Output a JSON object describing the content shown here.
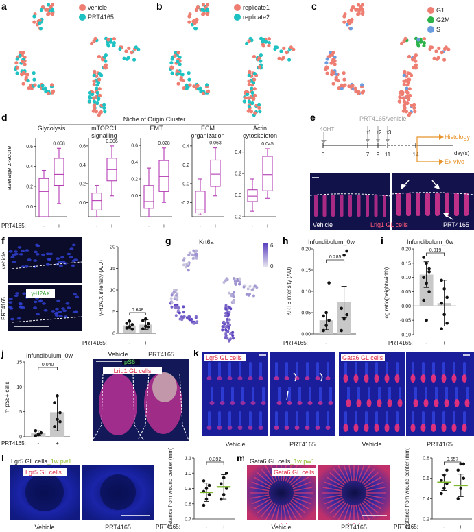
{
  "panels": {
    "a": {
      "letter": "a",
      "legend": [
        "vehicle",
        "PRT4165"
      ],
      "colors": [
        "#ee7e72",
        "#1fc2c2"
      ]
    },
    "b": {
      "letter": "b",
      "legend": [
        "replicate1",
        "replicate2"
      ],
      "colors": [
        "#ee7e72",
        "#1fc2c2"
      ]
    },
    "c": {
      "letter": "c",
      "legend": [
        "G1",
        "G2M",
        "S"
      ],
      "colors": [
        "#ee7e72",
        "#2bb34a",
        "#6a9de0"
      ]
    },
    "d": {
      "letter": "d",
      "title": "Niche of Origin Cluster",
      "ylabel": "average z-score",
      "treat_label": "PRT4165:",
      "subplots": [
        {
          "title": "Glycolysis",
          "title2": "",
          "pvalue": "0.058",
          "ticks": [
            "0.6",
            "0.4",
            "0.2",
            "0.0"
          ],
          "ymin": -0.1,
          "ymax": 0.65,
          "boxes": [
            {
              "q1": -0.1,
              "med": 0.15,
              "q3": 0.28,
              "lo": -0.1,
              "hi": 0.36
            },
            {
              "q1": 0.21,
              "med": 0.32,
              "q3": 0.48,
              "lo": 0.03,
              "hi": 0.58
            }
          ]
        },
        {
          "title": "mTORC1",
          "title2": "signalling",
          "pvalue": "0.006",
          "ticks": [
            "0.6",
            "0.4",
            "0.2",
            "0.0"
          ],
          "ymin": -0.15,
          "ymax": 0.65,
          "boxes": [
            {
              "q1": -0.08,
              "med": 0.02,
              "q3": 0.1,
              "lo": -0.15,
              "hi": 0.18
            },
            {
              "q1": 0.23,
              "med": 0.35,
              "q3": 0.47,
              "lo": 0.07,
              "hi": 0.6
            }
          ]
        },
        {
          "title": "EMT",
          "title2": "",
          "pvalue": "0.028",
          "ticks": [
            "0.6",
            "0.4",
            "0.2",
            "0.0"
          ],
          "ymin": -0.25,
          "ymax": 0.65,
          "boxes": [
            {
              "q1": -0.15,
              "med": -0.07,
              "q3": 0.12,
              "lo": -0.25,
              "hi": 0.33
            },
            {
              "q1": 0.05,
              "med": 0.23,
              "q3": 0.42,
              "lo": -0.08,
              "hi": 0.57
            }
          ]
        },
        {
          "title": "ECM",
          "title2": "organization",
          "pvalue": "0.063",
          "ticks": [
            "0.4",
            "0.2",
            "0.0",
            "-0.2"
          ],
          "ymin": -0.35,
          "ymax": 0.45,
          "boxes": [
            {
              "q1": -0.31,
              "med": -0.28,
              "q3": -0.08,
              "lo": -0.33,
              "hi": 0.05
            },
            {
              "q1": -0.03,
              "med": 0.1,
              "q3": 0.25,
              "lo": -0.13,
              "hi": 0.38
            }
          ]
        },
        {
          "title": "Actin",
          "title2": "cytoskeleton",
          "pvalue": "0.045",
          "ticks": [
            "0.4",
            "0.2",
            "0.0",
            "-0.2"
          ],
          "ymin": -0.2,
          "ymax": 0.5,
          "boxes": [
            {
              "q1": -0.06,
              "med": -0.01,
              "q3": 0.05,
              "lo": -0.15,
              "hi": 0.15
            },
            {
              "q1": 0.04,
              "med": 0.19,
              "q3": 0.36,
              "lo": -0.03,
              "hi": 0.43
            }
          ]
        }
      ],
      "treat": [
        "-",
        "+"
      ]
    },
    "e": {
      "letter": "e",
      "drug": "PRT4165/vehicle",
      "induce": "4OHT",
      "times": [
        "t1",
        "t2",
        "t3"
      ],
      "days": [
        "0",
        "7",
        "9",
        "11",
        "14"
      ],
      "unit": "day(s)",
      "out1": "Histology",
      "out2": "Ex vivo",
      "img_left": "Vehicle",
      "img_mid": "Lrig1 GL cells",
      "img_right": "PRT4165"
    },
    "f": {
      "letter": "f",
      "row1": "vehicle",
      "row2": "PRT4165",
      "stain": "γ-H2AX",
      "ylabel": "γ-H2A X intensity (A.U)",
      "pvalue": "0.648",
      "ticks": [
        "20",
        "15",
        "10",
        "5",
        "0"
      ],
      "ymax": 20,
      "treat_label": "PRT4165:",
      "treat": [
        "-",
        "+"
      ],
      "bars": [
        1.8,
        2.0
      ],
      "err": [
        0.8,
        1.1
      ],
      "points": [
        [
          1.2,
          1.5,
          2.0,
          2.3,
          2.8,
          0.9
        ],
        [
          1.0,
          1.6,
          2.2,
          2.9,
          3.3,
          1.4
        ]
      ]
    },
    "g": {
      "letter": "g",
      "gene": "Krt6a",
      "scale_max": "6",
      "scale_min": "0"
    },
    "h": {
      "letter": "h",
      "title": "Infundibulum_0w",
      "ylabel": "KRT6 intensity (AU)",
      "pvalue": "0.285",
      "ticks": [
        "0.20",
        "0.15",
        "0.10",
        "0.05",
        "0.00"
      ],
      "ymax": 0.2,
      "treat_label": "PRT4165:",
      "treat": [
        "-",
        "+"
      ],
      "bars": [
        0.032,
        0.075
      ],
      "err": [
        0.022,
        0.037
      ],
      "points": [
        [
          0.008,
          0.02,
          0.032,
          0.042,
          0.05,
          0.12
        ],
        [
          0.008,
          0.035,
          0.045,
          0.06,
          0.185,
          0.195
        ]
      ]
    },
    "i": {
      "letter": "i",
      "title": "Infundibulum_0w",
      "ylabel": "log ratio(height/width)",
      "pvalue": "0.019",
      "ticks": [
        "0.20",
        "0.15",
        "0.10",
        "0.05",
        "0.00",
        "-0.05",
        "-0.10"
      ],
      "ymin": -0.1,
      "ymax": 0.2,
      "treat_label": "PRT4165:",
      "treat": [
        "-",
        "+"
      ],
      "bars": [
        0.11,
        0.01
      ],
      "err": [
        0.045,
        0.08
      ],
      "points": [
        [
          0.17,
          0.15,
          0.12,
          0.1,
          0.08,
          0.05,
          0.02,
          -0.05,
          0.13
        ],
        [
          0.09,
          0.06,
          0.03,
          0.01,
          -0.03,
          -0.06,
          -0.08
        ]
      ]
    },
    "j": {
      "letter": "j",
      "title": "Infundibulum_0w",
      "ylabel": "n° pS6+ cells",
      "pvalue": "0.040",
      "ticks": [
        "15",
        "10",
        "5",
        "0"
      ],
      "ymax": 15,
      "treat_label": "PRT4165:",
      "treat": [
        "-",
        "+"
      ],
      "bars": [
        0.7,
        4.9
      ],
      "err": [
        0.5,
        3.7
      ],
      "points": [
        [
          0.2,
          0.5,
          0.8,
          1.2,
          0.4
        ],
        [
          2.0,
          3.5,
          4.8,
          6.8,
          8.2,
          3.0
        ]
      ],
      "img_left": "Vehicle",
      "img_right": "PRT4165",
      "stain1": "pS6",
      "stain2": "Lrig1 GL cells"
    },
    "k": {
      "letter": "k",
      "cells1": "Lgr5 GL cells",
      "cells2": "Gata6 GL cells",
      "labels": [
        "Vehicle",
        "PRT4165",
        "Vehicle",
        "PRT4165"
      ]
    },
    "l": {
      "letter": "l",
      "title_a": "Lgr5 GL cells",
      "title_b": "_1w pw1",
      "cells": "Lgr5 GL cells",
      "img_left": "Vehicle",
      "img_right": "PRT4165",
      "ylabel": "distance from wound center (mm)",
      "pvalue": "0.392",
      "ticks": [
        "1.1",
        "1.0",
        "0.9",
        "0.8",
        "0.7"
      ],
      "ymin": 0.7,
      "ymax": 1.1,
      "treat_label": "PRT4165:",
      "treat": [
        "-",
        "+"
      ],
      "means": [
        0.875,
        0.91
      ],
      "err": [
        0.06,
        0.08
      ],
      "points": [
        [
          0.79,
          0.83,
          0.86,
          0.88,
          0.9,
          0.92,
          0.95
        ],
        [
          0.83,
          0.86,
          0.9,
          0.93,
          0.97,
          1.0
        ]
      ]
    },
    "m": {
      "letter": "m",
      "title_a": "Gata6 GL cells",
      "title_b": "_1w pw1",
      "cells": "Gata6 GL cells",
      "img_left": "Vehicle",
      "img_right": "PRT4165",
      "ylabel": "distance from wound center (mm)",
      "pvalue": "0.657",
      "ticks": [
        "0.8",
        "0.6",
        "0.4",
        "0.2"
      ],
      "ymin": 0.2,
      "ymax": 0.8,
      "treat_label": "PRT4165:",
      "treat": [
        "-",
        "+"
      ],
      "means": [
        0.56,
        0.53
      ],
      "err": [
        0.08,
        0.11
      ],
      "points": [
        [
          0.45,
          0.5,
          0.55,
          0.58,
          0.63,
          0.68
        ],
        [
          0.4,
          0.5,
          0.6,
          0.68,
          0.74,
          0.74
        ]
      ]
    }
  }
}
